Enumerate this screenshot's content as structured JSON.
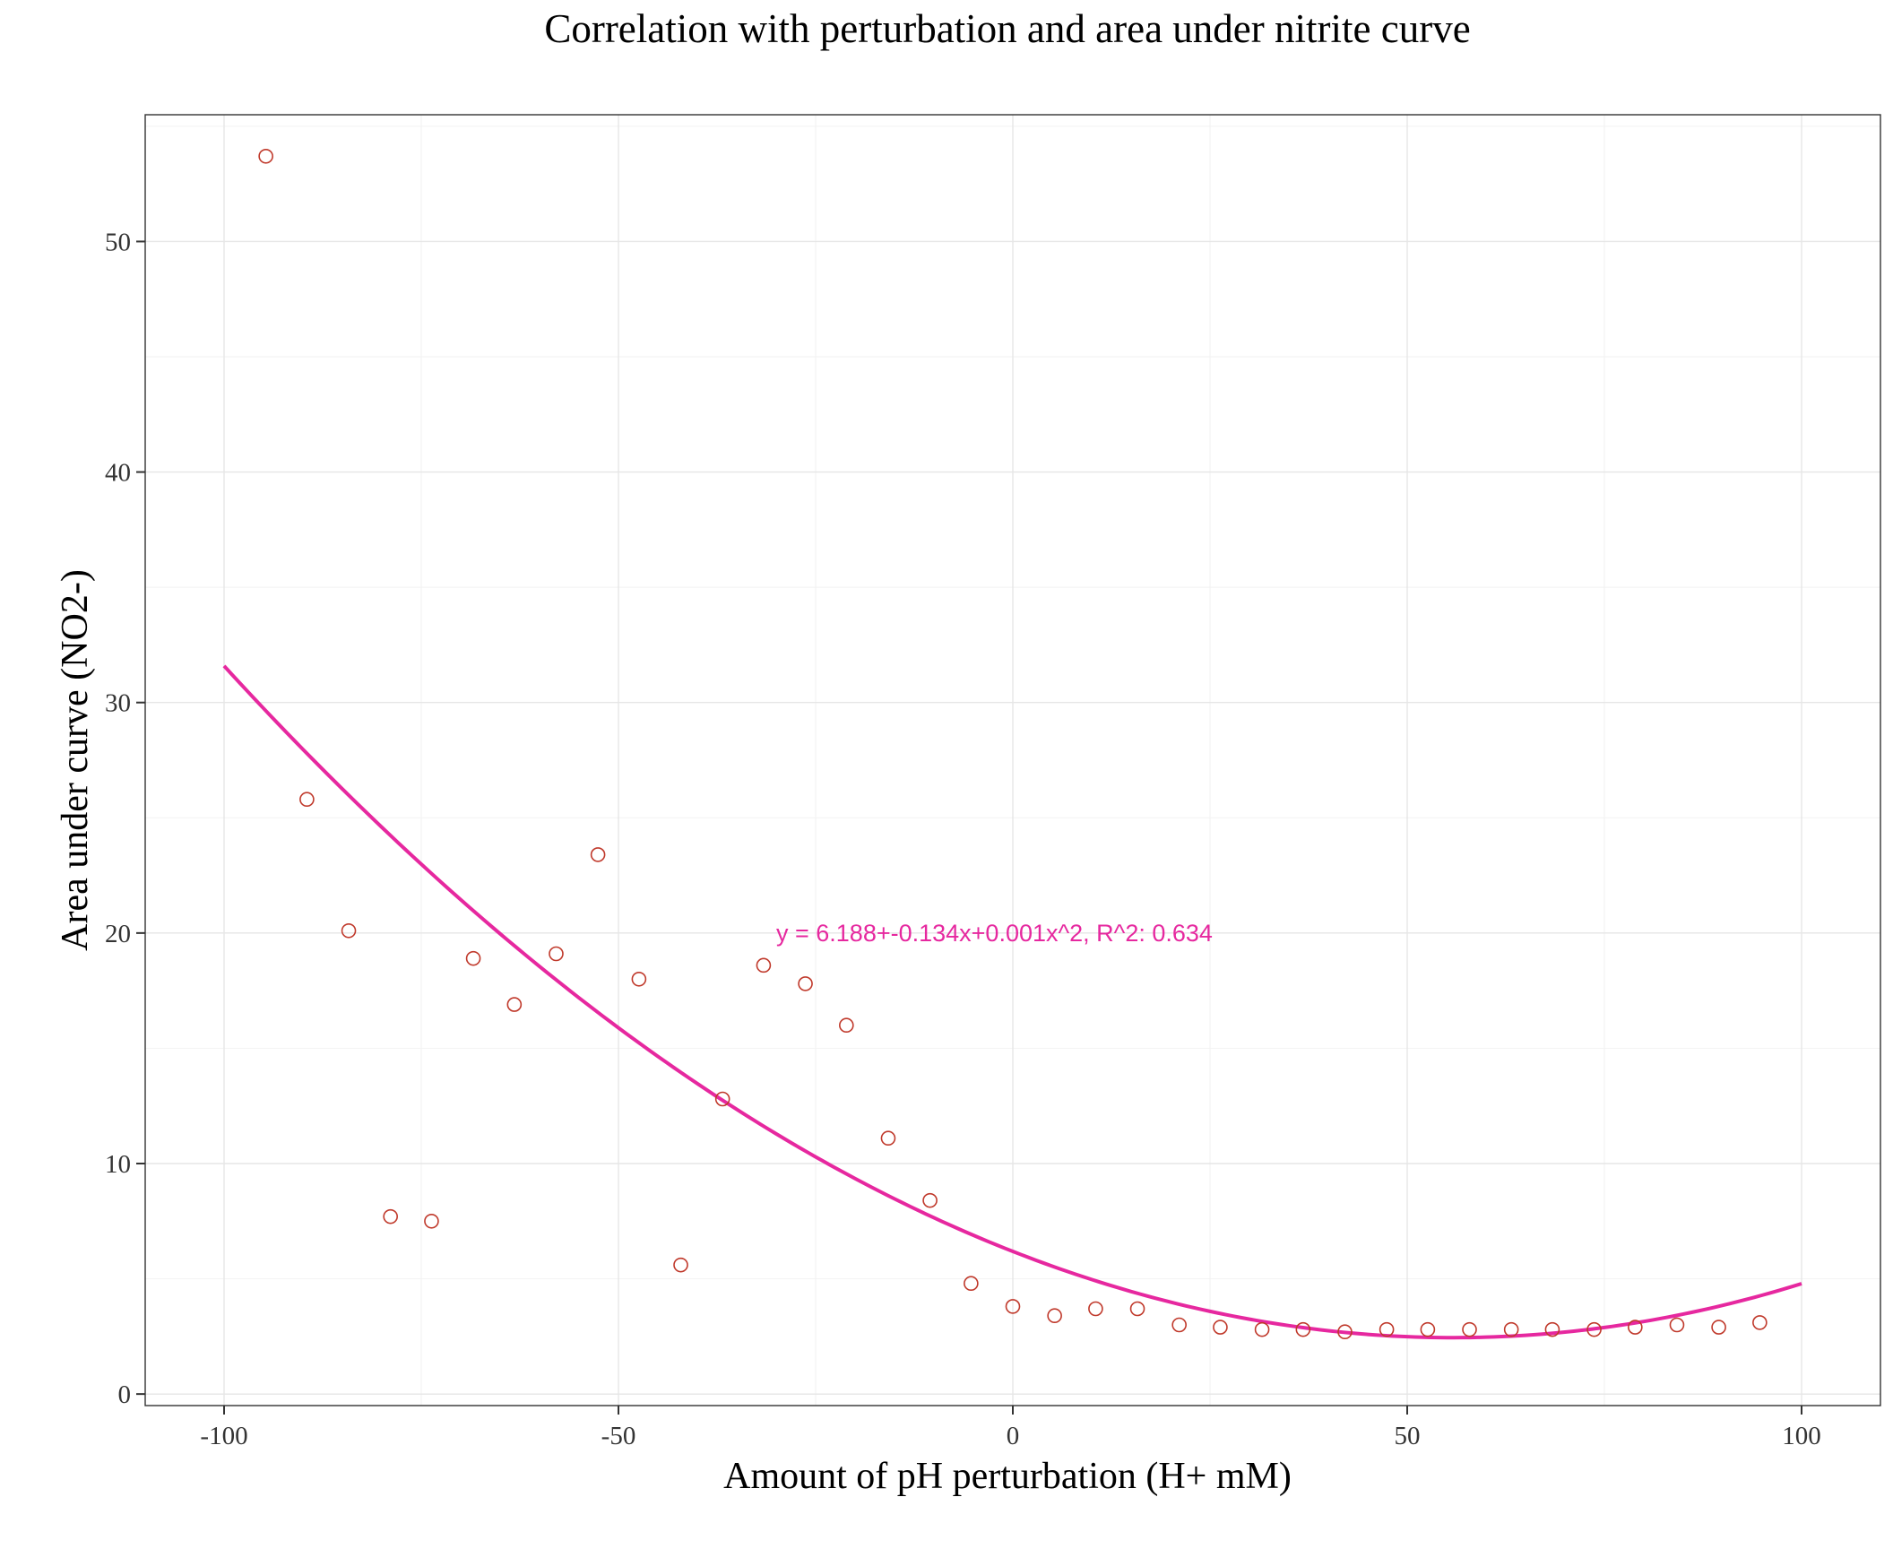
{
  "chart_data": {
    "type": "scatter",
    "title": "Correlation with perturbation and area under nitrite curve",
    "xlabel": "Amount of pH perturbation (H+ mM)",
    "ylabel": "Area under curve (NO2-)",
    "xlim": [
      -110,
      110
    ],
    "ylim": [
      -0.5,
      55.5
    ],
    "x_ticks": [
      -100,
      -50,
      0,
      50,
      100
    ],
    "x_tick_labels": [
      "-100",
      "-50",
      "0",
      "50",
      "100"
    ],
    "y_ticks": [
      0,
      10,
      20,
      30,
      40,
      50
    ],
    "y_tick_labels": [
      "0",
      "10",
      "20",
      "30",
      "40",
      "50"
    ],
    "grid": true,
    "points": [
      {
        "x": -94.7,
        "y": 53.7
      },
      {
        "x": -89.5,
        "y": 25.8
      },
      {
        "x": -84.2,
        "y": 20.1
      },
      {
        "x": -78.9,
        "y": 7.7
      },
      {
        "x": -73.7,
        "y": 7.5
      },
      {
        "x": -68.4,
        "y": 18.9
      },
      {
        "x": -63.2,
        "y": 16.9
      },
      {
        "x": -57.9,
        "y": 19.1
      },
      {
        "x": -52.6,
        "y": 23.4
      },
      {
        "x": -47.4,
        "y": 18.0
      },
      {
        "x": -42.1,
        "y": 5.6
      },
      {
        "x": -36.8,
        "y": 12.8
      },
      {
        "x": -31.6,
        "y": 18.6
      },
      {
        "x": -26.3,
        "y": 17.8
      },
      {
        "x": -21.1,
        "y": 16.0
      },
      {
        "x": -15.8,
        "y": 11.1
      },
      {
        "x": -10.5,
        "y": 8.4
      },
      {
        "x": -5.3,
        "y": 4.8
      },
      {
        "x": 0.0,
        "y": 3.8
      },
      {
        "x": 5.3,
        "y": 3.4
      },
      {
        "x": 10.5,
        "y": 3.7
      },
      {
        "x": 15.8,
        "y": 3.7
      },
      {
        "x": 21.1,
        "y": 3.0
      },
      {
        "x": 26.3,
        "y": 2.9
      },
      {
        "x": 31.6,
        "y": 2.8
      },
      {
        "x": 36.8,
        "y": 2.8
      },
      {
        "x": 42.1,
        "y": 2.7
      },
      {
        "x": 47.4,
        "y": 2.8
      },
      {
        "x": 52.6,
        "y": 2.8
      },
      {
        "x": 57.9,
        "y": 2.8
      },
      {
        "x": 63.2,
        "y": 2.8
      },
      {
        "x": 68.4,
        "y": 2.8
      },
      {
        "x": 73.7,
        "y": 2.8
      },
      {
        "x": 78.9,
        "y": 2.9
      },
      {
        "x": 84.2,
        "y": 3.0
      },
      {
        "x": 89.5,
        "y": 2.9
      },
      {
        "x": 94.7,
        "y": 3.1
      }
    ],
    "fit_curve": {
      "type": "quadratic",
      "x_range": [
        -100,
        100
      ],
      "coefficients": [
        6.188,
        -0.134,
        0.0012
      ],
      "label": "y = 6.188+-0.134x+0.001x^2,  R^2: 0.634",
      "label_x": -30,
      "label_y": 20
    },
    "colors": {
      "points": "#c0392b",
      "fit": "#e6289f",
      "annotation": "#e6289f"
    }
  }
}
